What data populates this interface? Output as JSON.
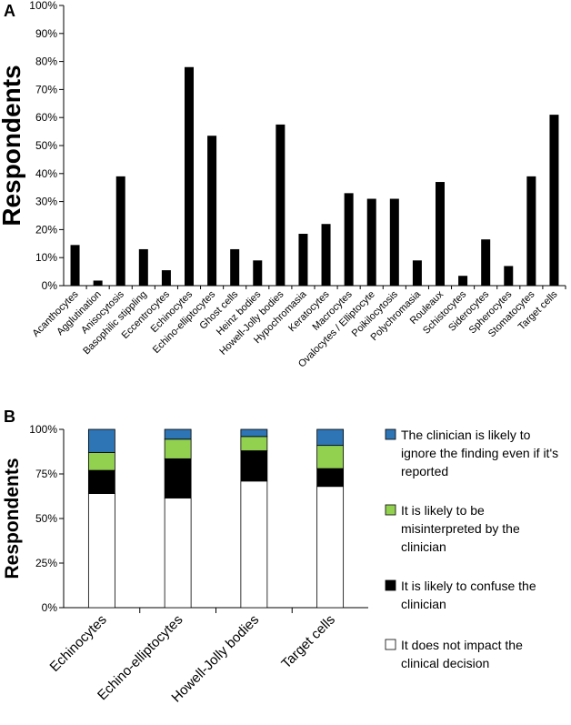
{
  "chart_data": [
    {
      "panel": "A",
      "type": "bar",
      "ylabel": "Respondents",
      "ylim": [
        0,
        100
      ],
      "yticks": [
        "0%",
        "10%",
        "20%",
        "30%",
        "40%",
        "50%",
        "60%",
        "70%",
        "80%",
        "90%",
        "100%"
      ],
      "categories": [
        "Acanthocytes",
        "Agglutination",
        "Anisocytosis",
        "Basophilic stippling",
        "Eccentrocytes",
        "Echinocytes",
        "Echino-elliptocytes",
        "Ghost cells",
        "Heinz bodies",
        "Howell-Jolly bodies",
        "Hypochromasia",
        "Keratocytes",
        "Macrocytes",
        "Ovalocytes / Elliptocyte",
        "Poikilocytosis",
        "Polychromasia",
        "Rouleaux",
        "Schistocytes",
        "Siderocytes",
        "Spherocytes",
        "Stomatocytes",
        "Target cells"
      ],
      "values": [
        14.5,
        1.8,
        39,
        13,
        5.5,
        78,
        53.5,
        13,
        9,
        57.5,
        18.5,
        22,
        33,
        31,
        31,
        9,
        37,
        3.5,
        16.5,
        7,
        39,
        61
      ],
      "bar_color": "#000000"
    },
    {
      "panel": "B",
      "type": "stacked_bar",
      "ylabel": "Respondents",
      "ylim": [
        0,
        100
      ],
      "yticks": [
        "0%",
        "25%",
        "50%",
        "75%",
        "100%"
      ],
      "categories": [
        "Echinocytes",
        "Echino-elliptocytes",
        "Howell-Jolly bodies",
        "Target cells"
      ],
      "series": [
        {
          "name": "It does not impact the clinical decision",
          "color": "#ffffff",
          "values": [
            64,
            61.5,
            71,
            68
          ]
        },
        {
          "name": "It is likely to confuse the clinician",
          "color": "#000000",
          "values": [
            13,
            22,
            17,
            10
          ]
        },
        {
          "name": "It is likely to be misinterpreted by the clinician",
          "color": "#92d050",
          "values": [
            10,
            11,
            8,
            13
          ]
        },
        {
          "name": "The clinician is likely to ignore the finding even if it's reported",
          "color": "#2e75b6",
          "values": [
            13,
            5.5,
            4,
            9
          ]
        }
      ],
      "legend_order": [
        {
          "lines": [
            "The clinician is likely to",
            "ignore the finding even if it's",
            "reported"
          ],
          "color": "#2e75b6"
        },
        {
          "lines": [
            "It is likely to be",
            "misinterpreted by the",
            "clinician"
          ],
          "color": "#92d050"
        },
        {
          "lines": [
            "It is likely to confuse the",
            "clinician"
          ],
          "color": "#000000"
        },
        {
          "lines": [
            "It does not impact the",
            "clinical decision"
          ],
          "color": "#ffffff"
        }
      ],
      "legend_position": "right"
    }
  ]
}
